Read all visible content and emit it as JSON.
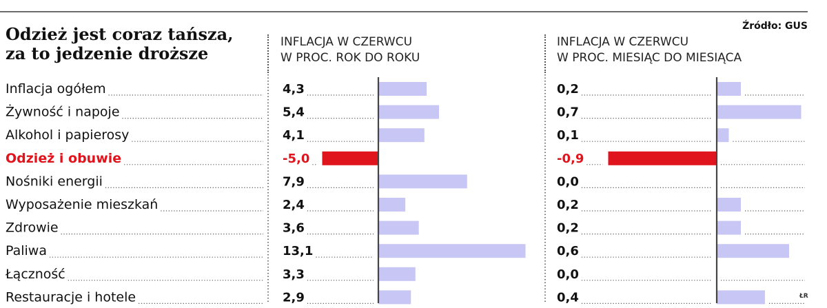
{
  "title_line1": "Odzież jest coraz tańsza,",
  "title_line2": "za to jedzenie droższe",
  "source": "Źródło: GUS",
  "credit": "ŁR",
  "colors": {
    "positive": "#c8c6f4",
    "negative": "#e0141c",
    "highlight_text": "#e0141c",
    "axis": "#444444"
  },
  "chart_data": [
    {
      "type": "bar",
      "title_line1": "INFLACJA W CZERWCU",
      "title_line2": "W PROC. ROK DO ROKU",
      "categories": [
        "Inflacja ogółem",
        "Żywność i napoje",
        "Alkohol i papierosy",
        "Odzież i obuwie",
        "Nośniki energii",
        "Wyposażenie mieszkań",
        "Zdrowie",
        "Paliwa",
        "Łączność",
        "Restauracje i hotele"
      ],
      "values": [
        4.3,
        5.4,
        4.1,
        -5.0,
        7.9,
        2.4,
        3.6,
        13.1,
        3.3,
        2.9
      ],
      "value_labels": [
        "4,3",
        "5,4",
        "4,1",
        "-5,0",
        "7,9",
        "2,4",
        "3,6",
        "13,1",
        "3,3",
        "2,9"
      ],
      "highlight_index": 3,
      "xlim": [
        -5.5,
        14.5
      ]
    },
    {
      "type": "bar",
      "title_line1": "INFLACJA W CZERWCU",
      "title_line2": "W PROC. MIESIĄC DO MIESIĄCA",
      "categories": [
        "Inflacja ogółem",
        "Żywność i napoje",
        "Alkohol i papierosy",
        "Odzież i obuwie",
        "Nośniki energii",
        "Wyposażenie mieszkań",
        "Zdrowie",
        "Paliwa",
        "Łączność",
        "Restauracje i hotele"
      ],
      "values": [
        0.2,
        0.7,
        0.1,
        -0.9,
        0.0,
        0.2,
        0.2,
        0.6,
        0.0,
        0.4
      ],
      "value_labels": [
        "0,2",
        "0,7",
        "0,1",
        "-0,9",
        "0,0",
        "0,2",
        "0,2",
        "0,6",
        "0,0",
        "0,4"
      ],
      "highlight_index": 3,
      "xlim": [
        -1.0,
        0.75
      ]
    }
  ]
}
